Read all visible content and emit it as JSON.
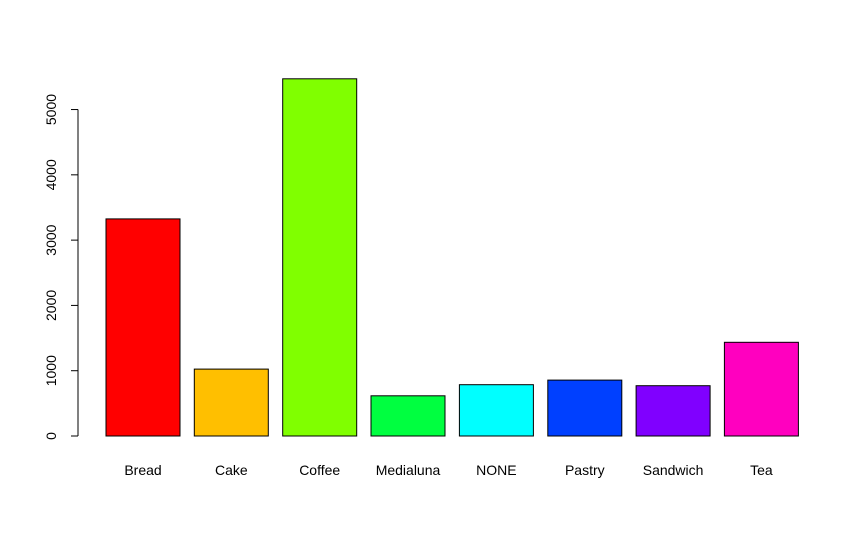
{
  "chart_data": {
    "type": "bar",
    "categories": [
      "Bread",
      "Cake",
      "Coffee",
      "Medialuna",
      "NONE",
      "Pastry",
      "Sandwich",
      "Tea"
    ],
    "values": [
      3325,
      1025,
      5471,
      616,
      786,
      856,
      771,
      1435
    ],
    "ylim": [
      0,
      5471
    ],
    "y_ticks": [
      0,
      1000,
      2000,
      3000,
      4000,
      5000
    ],
    "y_tick_labels": [
      "0",
      "1000",
      "2000",
      "3000",
      "4000",
      "5000"
    ],
    "colors": [
      "#FF0000",
      "#FFBF00",
      "#80FF00",
      "#00FF40",
      "#00FFFF",
      "#0040FF",
      "#8000FF",
      "#FF00BF"
    ],
    "title": "",
    "xlabel": "",
    "ylabel": "",
    "grid": false,
    "legend": "none"
  }
}
